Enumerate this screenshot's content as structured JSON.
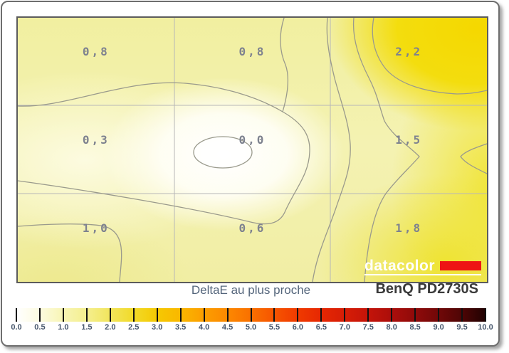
{
  "chart_data": {
    "type": "heatmap",
    "subtype": "contour-uniformity-map",
    "title": "DeltaE au plus proche",
    "device": "BenQ PD2730S",
    "grid": {
      "rows": 3,
      "cols": 3
    },
    "values": [
      [
        0.8,
        0.8,
        2.2
      ],
      [
        0.3,
        0.0,
        1.5
      ],
      [
        1.0,
        0.6,
        1.8
      ]
    ],
    "value_labels": [
      [
        "0,8",
        "0,8",
        "2,2"
      ],
      [
        "0,3",
        "0,0",
        "1,5"
      ],
      [
        "1,0",
        "0,6",
        "1,8"
      ]
    ],
    "contour_levels": [
      0.5,
      1.0,
      1.5,
      2.0
    ],
    "colorbar": {
      "min": 0.0,
      "max": 10.0,
      "step": 0.5,
      "tick_labels": [
        "0.0",
        "0.5",
        "1.0",
        "1.5",
        "2.0",
        "2.5",
        "3.0",
        "3.5",
        "4.0",
        "4.5",
        "5.0",
        "5.5",
        "6.0",
        "6.5",
        "7.0",
        "7.5",
        "8.0",
        "8.5",
        "9.0",
        "9.5",
        "10.0"
      ],
      "gradient_stops": [
        {
          "v": 0.0,
          "c": "#ffffff"
        },
        {
          "v": 0.5,
          "c": "#fcfbe0"
        },
        {
          "v": 1.0,
          "c": "#f8f5b4"
        },
        {
          "v": 1.5,
          "c": "#f4ef8e"
        },
        {
          "v": 2.0,
          "c": "#f2e55c"
        },
        {
          "v": 2.5,
          "c": "#f2da28"
        },
        {
          "v": 3.0,
          "c": "#f5c902"
        },
        {
          "v": 3.5,
          "c": "#fab700"
        },
        {
          "v": 4.0,
          "c": "#fc9e00"
        },
        {
          "v": 4.5,
          "c": "#fc8800"
        },
        {
          "v": 5.0,
          "c": "#fa7000"
        },
        {
          "v": 5.5,
          "c": "#f65400"
        },
        {
          "v": 6.0,
          "c": "#f03a00"
        },
        {
          "v": 6.5,
          "c": "#e62702"
        },
        {
          "v": 7.0,
          "c": "#d61d06"
        },
        {
          "v": 7.5,
          "c": "#c41409"
        },
        {
          "v": 8.0,
          "c": "#ab0e0b"
        },
        {
          "v": 8.5,
          "c": "#8f0a0a"
        },
        {
          "v": 9.0,
          "c": "#710808"
        },
        {
          "v": 9.5,
          "c": "#4e0505"
        },
        {
          "v": 10.0,
          "c": "#200202"
        }
      ]
    },
    "colors": {
      "value_label": "#7e828f",
      "title_text": "#54657b",
      "device_text": "#3a3a3a",
      "contour_line": "#9a9a8c",
      "grid_line": "#b7b7b7",
      "logo_red": "#ee1414",
      "logo_white": "#ffffff",
      "peak_yellow": "#f5d800"
    }
  },
  "branding": {
    "logo_text": "datacolor"
  }
}
